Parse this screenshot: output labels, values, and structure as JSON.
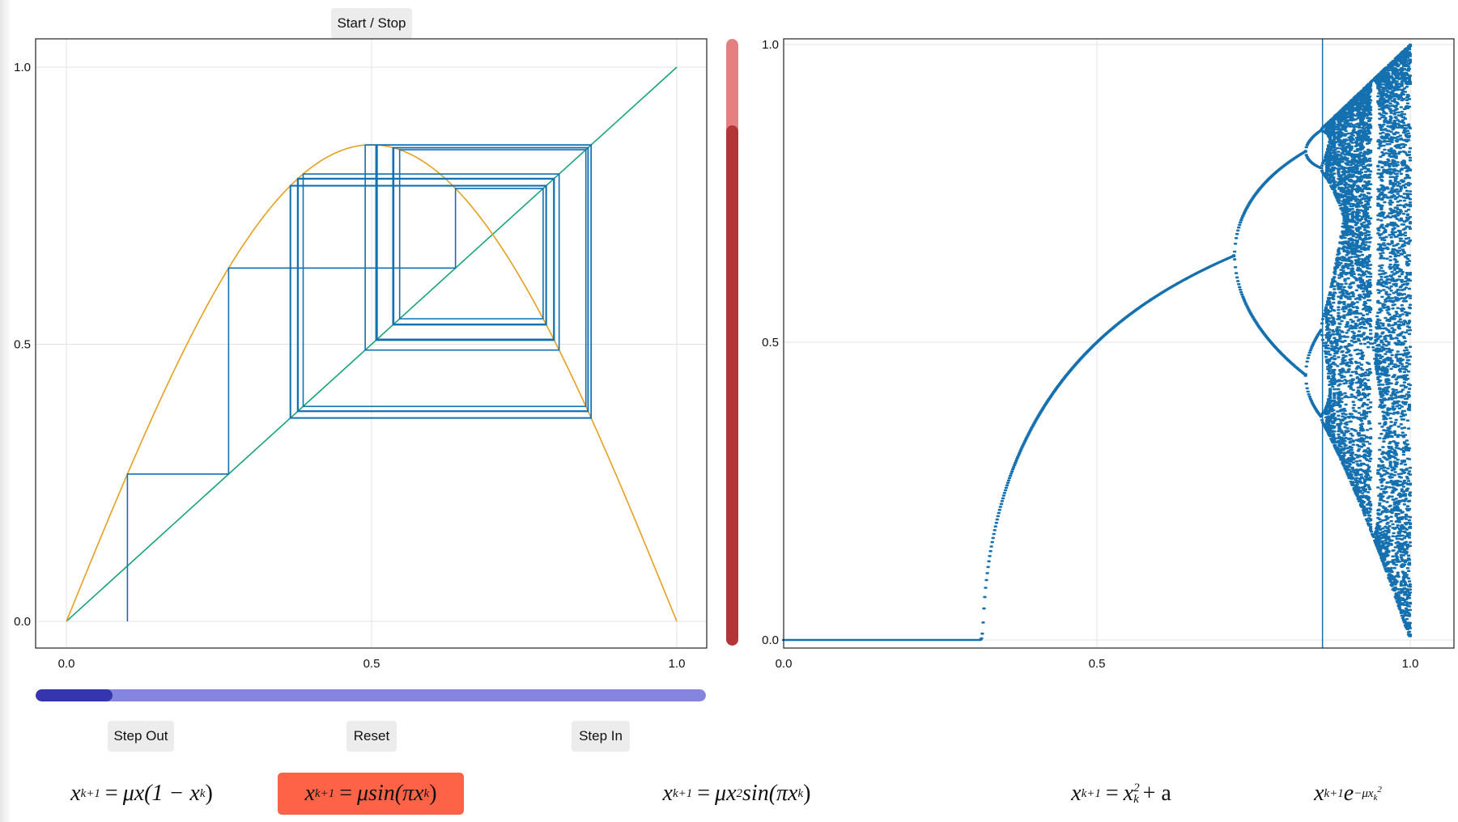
{
  "controls": {
    "start_stop_label": "Start / Stop",
    "step_out_label": "Step Out",
    "reset_label": "Reset",
    "step_in_label": "Step In"
  },
  "sliders": {
    "iteration_slider": {
      "orientation": "horizontal",
      "fraction": 0.115,
      "fill_color": "#3535b0",
      "track_color": "#8585e0"
    },
    "mu_slider": {
      "orientation": "vertical",
      "fraction": 0.857,
      "fill_color": "#b33535",
      "track_color": "#e58080"
    }
  },
  "equations": {
    "selected_index": 1,
    "items": [
      {
        "id": "logistic",
        "lhs_var": "x",
        "lhs_sub": "k+1",
        "eq": "=",
        "body": "μx(1 − x",
        "body_sub": "k",
        "tail": ")"
      },
      {
        "id": "sine",
        "lhs_var": "x",
        "lhs_sub": "k+1",
        "eq": "=",
        "body": "μsin(πx",
        "body_sub": "k",
        "tail": ")"
      },
      {
        "id": "cubic-sine",
        "lhs_var": "x",
        "lhs_sub": "k+1",
        "eq": "=",
        "body": "μx",
        "body_sup": "2",
        "body2": "sin(πx",
        "body2_sub": "k",
        "tail": ")"
      },
      {
        "id": "quadratic",
        "lhs_var": "x",
        "lhs_sub": "k+1",
        "eq": "=",
        "body": "x",
        "body_sup": "2",
        "body_sub": "k",
        "tail": " + a"
      },
      {
        "id": "gauss",
        "lhs_var": "x",
        "lhs_sub": "k+1",
        "body": "e",
        "exp": "−μx",
        "exp_sub": "k",
        "exp_sup": "2"
      }
    ]
  },
  "chart_data": [
    {
      "type": "line",
      "name": "cobweb",
      "xlim": [
        0,
        1
      ],
      "ylim": [
        0,
        1
      ],
      "xticks": [
        "0.0",
        "0.5",
        "1.0"
      ],
      "yticks": [
        "0.0",
        "0.5",
        "1.0"
      ],
      "grid": true,
      "mu": 0.86,
      "x0": 0.1,
      "series": [
        {
          "role": "map",
          "color": "#e5a020"
        },
        {
          "role": "identity",
          "color": "#1aa37a",
          "points": [
            [
              0,
              0
            ],
            [
              1,
              1
            ]
          ]
        },
        {
          "role": "cobweb",
          "color": "#1570b0"
        }
      ]
    },
    {
      "type": "scatter",
      "name": "bifurcation",
      "xlim": [
        0,
        1
      ],
      "ylim": [
        0,
        1
      ],
      "xticks": [
        "0.0",
        "0.5",
        "1.0"
      ],
      "yticks": [
        "0.0",
        "0.5",
        "1.0"
      ],
      "grid": true,
      "marker_line_x": 0.86,
      "color": "#1570b0"
    }
  ]
}
